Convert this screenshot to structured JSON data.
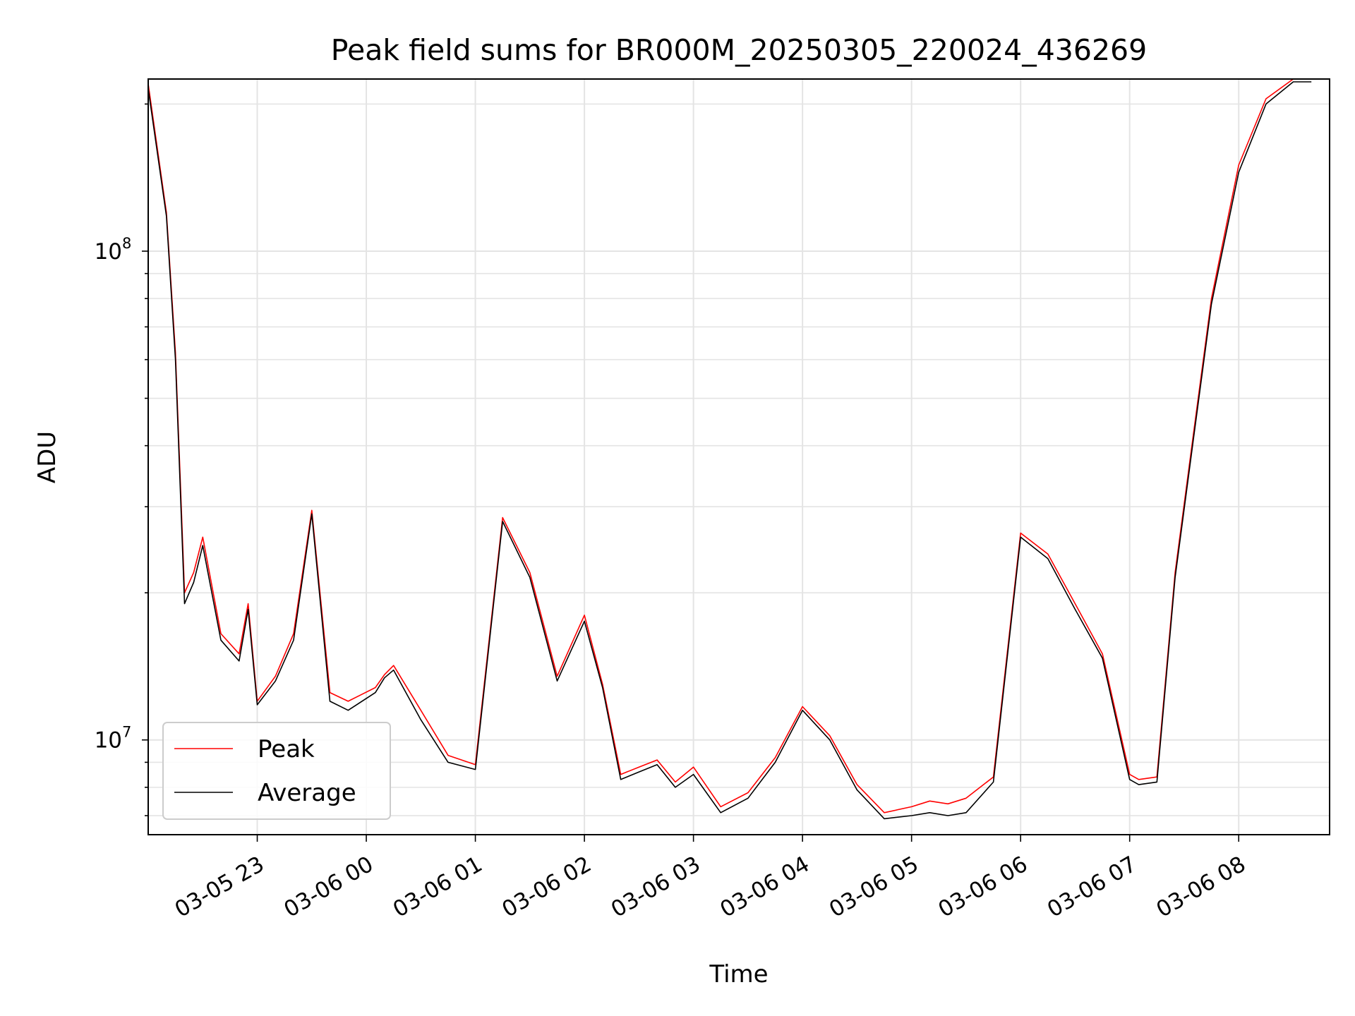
{
  "chart_data": {
    "type": "line",
    "title": "Peak field sums for BR000M_20250305_220024_436269",
    "xlabel": "Time",
    "ylabel": "ADU",
    "yscale": "log",
    "ylim": [
      6400000,
      225000000
    ],
    "xlim": [
      "2025-03-05 22:00",
      "2025-03-06 08:50"
    ],
    "grid": true,
    "legend_position": "lower-left",
    "x_ticks": [
      "03-05 23",
      "03-06 00",
      "03-06 01",
      "03-06 02",
      "03-06 03",
      "03-06 04",
      "03-06 05",
      "03-06 06",
      "03-06 07",
      "03-06 08"
    ],
    "y_ticks": [
      {
        "value": 10000000,
        "base": "10",
        "exp": "7"
      },
      {
        "value": 100000000,
        "base": "10",
        "exp": "8"
      }
    ],
    "x": [
      "2025-03-05 22:00",
      "2025-03-05 22:10",
      "2025-03-05 22:15",
      "2025-03-05 22:20",
      "2025-03-05 22:25",
      "2025-03-05 22:30",
      "2025-03-05 22:40",
      "2025-03-05 22:50",
      "2025-03-05 22:55",
      "2025-03-05 23:00",
      "2025-03-05 23:10",
      "2025-03-05 23:20",
      "2025-03-05 23:30",
      "2025-03-05 23:40",
      "2025-03-05 23:50",
      "2025-03-06 00:05",
      "2025-03-06 00:10",
      "2025-03-06 00:15",
      "2025-03-06 00:30",
      "2025-03-06 00:45",
      "2025-03-06 01:00",
      "2025-03-06 01:15",
      "2025-03-06 01:30",
      "2025-03-06 01:45",
      "2025-03-06 02:00",
      "2025-03-06 02:10",
      "2025-03-06 02:20",
      "2025-03-06 02:30",
      "2025-03-06 02:40",
      "2025-03-06 02:50",
      "2025-03-06 03:00",
      "2025-03-06 03:15",
      "2025-03-06 03:30",
      "2025-03-06 03:45",
      "2025-03-06 04:00",
      "2025-03-06 04:15",
      "2025-03-06 04:30",
      "2025-03-06 04:45",
      "2025-03-06 05:00",
      "2025-03-06 05:10",
      "2025-03-06 05:20",
      "2025-03-06 05:30",
      "2025-03-06 05:45",
      "2025-03-06 06:00",
      "2025-03-06 06:15",
      "2025-03-06 06:30",
      "2025-03-06 06:45",
      "2025-03-06 07:00",
      "2025-03-06 07:05",
      "2025-03-06 07:15",
      "2025-03-06 07:25",
      "2025-03-06 07:35",
      "2025-03-06 07:45",
      "2025-03-06 08:00",
      "2025-03-06 08:15",
      "2025-03-06 08:30",
      "2025-03-06 08:35",
      "2025-03-06 08:40"
    ],
    "series": [
      {
        "name": "Peak",
        "color": "#ff0000",
        "values": [
          220000000,
          120000000,
          62000000,
          20000000,
          22000000,
          26000000,
          16500000,
          15000000,
          19000000,
          12000000,
          13500000,
          16500000,
          29500000,
          12500000,
          12000000,
          12800000,
          13600000,
          14200000,
          11500000,
          9300000,
          8900000,
          28500000,
          22000000,
          13500000,
          18000000,
          13000000,
          8500000,
          8800000,
          9100000,
          8200000,
          8800000,
          7300000,
          7800000,
          9200000,
          11700000,
          10200000,
          8100000,
          7100000,
          7300000,
          7500000,
          7400000,
          7600000,
          8400000,
          26500000,
          24000000,
          19000000,
          15000000,
          8500000,
          8300000,
          8400000,
          22000000,
          42000000,
          80000000,
          150000000,
          205000000,
          225000000,
          225000000,
          225000000
        ]
      },
      {
        "name": "Average",
        "color": "#000000",
        "values": [
          215000000,
          118000000,
          60000000,
          19000000,
          21000000,
          25000000,
          16000000,
          14500000,
          18500000,
          11800000,
          13200000,
          16000000,
          29000000,
          12000000,
          11500000,
          12500000,
          13400000,
          13900000,
          11000000,
          9000000,
          8700000,
          28000000,
          21500000,
          13200000,
          17500000,
          12800000,
          8300000,
          8600000,
          8900000,
          8000000,
          8500000,
          7100000,
          7600000,
          9000000,
          11500000,
          10000000,
          7900000,
          6900000,
          7000000,
          7100000,
          7000000,
          7100000,
          8200000,
          26000000,
          23500000,
          18500000,
          14700000,
          8300000,
          8100000,
          8200000,
          21500000,
          41000000,
          78000000,
          145000000,
          200000000,
          222000000,
          222000000,
          222000000
        ]
      }
    ]
  }
}
